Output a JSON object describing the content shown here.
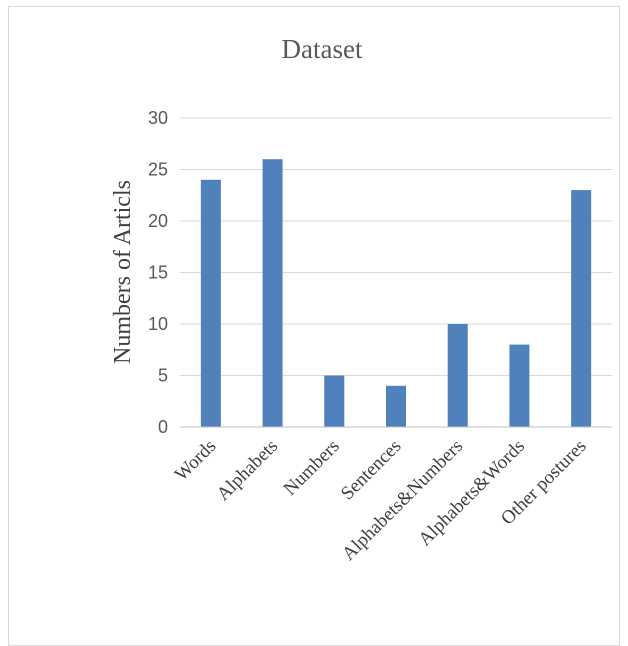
{
  "chart_data": {
    "type": "bar",
    "title": "Dataset",
    "xlabel": "",
    "ylabel": "Numbers of Articls",
    "categories": [
      "Words",
      "Alphabets",
      "Numbers",
      "Sentences",
      "Alphabets&Numbers",
      "Alphabets&Words",
      "Other postures"
    ],
    "values": [
      24,
      26,
      5,
      4,
      10,
      8,
      23
    ],
    "ylim": [
      0,
      30
    ],
    "yticks": [
      0,
      5,
      10,
      15,
      20,
      25,
      30
    ],
    "grid": true,
    "legend": "none",
    "bar_color": "#4f81bd"
  }
}
